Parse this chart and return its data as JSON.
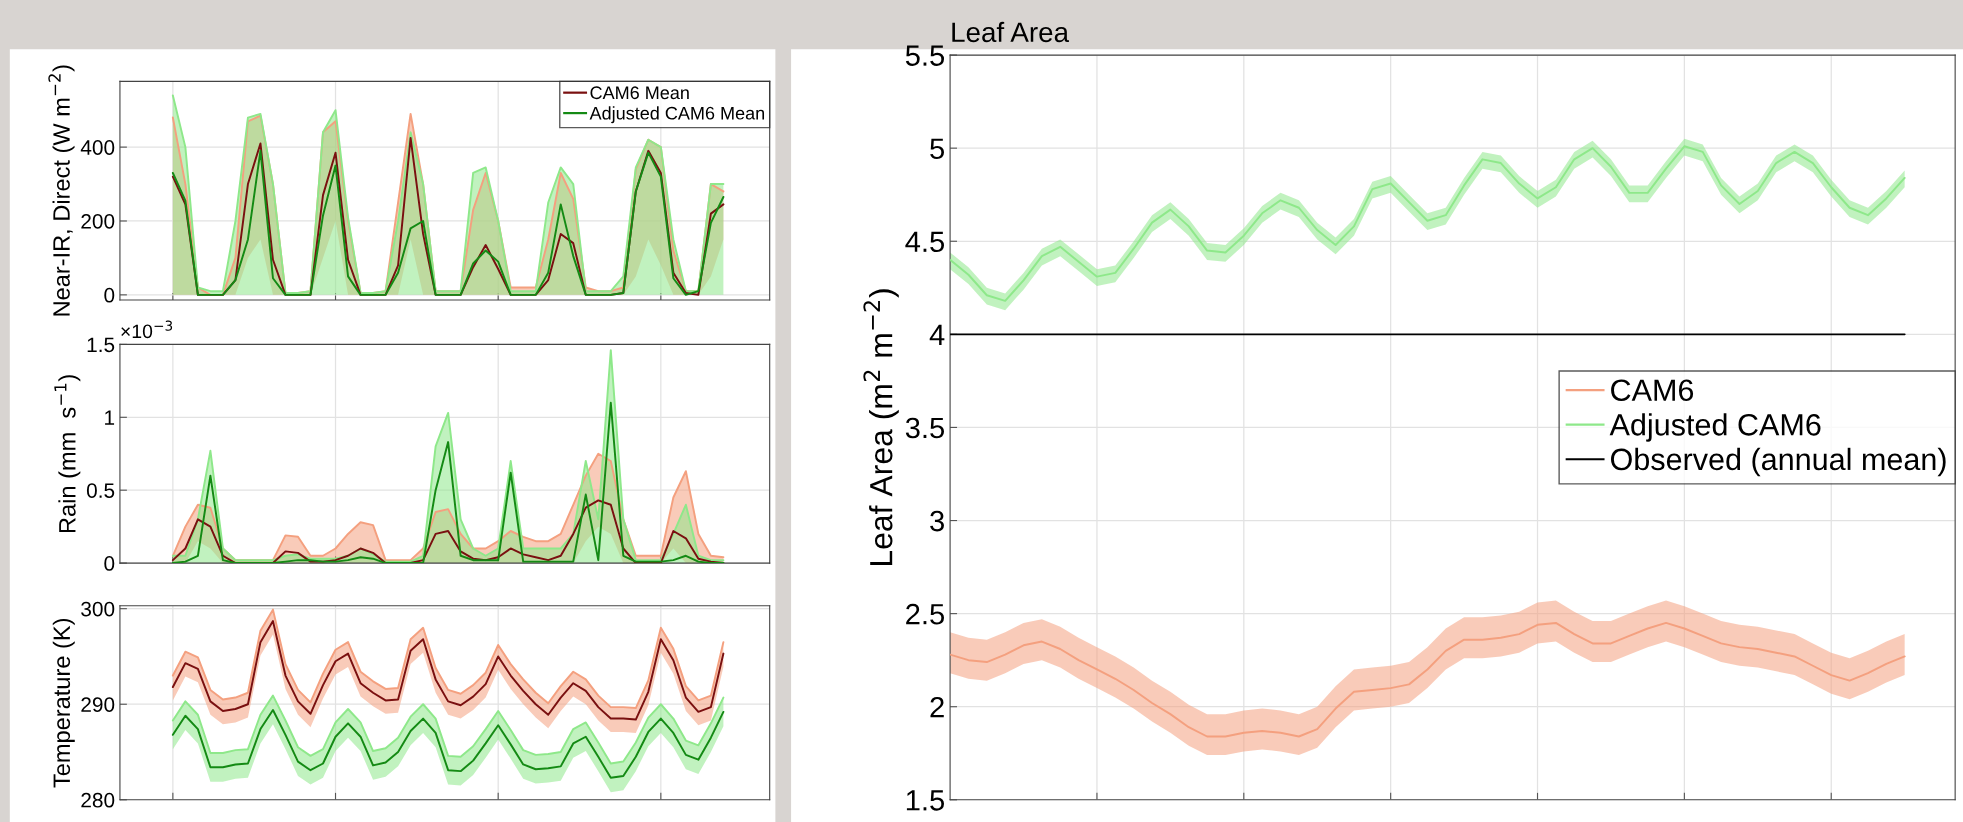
{
  "chart_data": [
    {
      "type": "line",
      "ylabel": "Near-IR, Direct (W m$^{−2}$)",
      "categories": [
        null,
        null,
        null,
        null,
        null,
        null,
        null,
        null,
        null,
        null,
        null,
        null,
        null,
        null,
        null,
        null,
        null,
        null,
        null,
        null,
        null,
        null,
        null,
        null,
        null,
        null,
        null,
        null,
        null,
        null,
        null,
        null,
        null,
        null,
        null,
        null,
        null,
        null,
        null,
        null,
        null,
        null,
        null,
        null,
        null
      ],
      "ylim": [
        -14,
        578
      ],
      "yticks": [
        0,
        200,
        400
      ],
      "tick_labels": "y",
      "grid": true,
      "legend": "top right",
      "marker": "none",
      "line_style": "solid",
      "series": [
        {
          "color": "#f4a07f",
          "values": [
            480,
            300,
            20,
            0,
            0,
            100,
            470,
            485,
            300,
            5,
            5,
            10,
            440,
            470,
            200,
            5,
            5,
            10,
            250,
            490,
            300,
            10,
            10,
            10,
            230,
            330,
            200,
            20,
            20,
            20,
            150,
            330,
            260,
            20,
            10,
            10,
            20,
            340,
            420,
            400,
            120,
            10,
            10,
            300,
            280
          ],
          "lower": [
            0,
            0,
            0,
            0,
            0,
            0,
            100,
            150,
            0,
            0,
            0,
            0,
            100,
            200,
            0,
            0,
            0,
            0,
            0,
            150,
            0,
            0,
            0,
            0,
            0,
            0,
            0,
            0,
            0,
            0,
            0,
            0,
            0,
            0,
            0,
            0,
            0,
            50,
            150,
            80,
            0,
            0,
            0,
            50,
            150
          ],
          "upper": [
            480,
            300,
            20,
            0,
            0,
            100,
            470,
            485,
            300,
            5,
            5,
            10,
            440,
            470,
            200,
            5,
            5,
            10,
            250,
            490,
            300,
            10,
            10,
            10,
            230,
            330,
            200,
            20,
            20,
            20,
            150,
            330,
            260,
            20,
            10,
            10,
            20,
            340,
            420,
            400,
            120,
            10,
            10,
            300,
            280
          ]
        },
        {
          "color": "#8ee88a",
          "values": [
            540,
            400,
            20,
            10,
            10,
            200,
            480,
            490,
            300,
            5,
            5,
            10,
            440,
            500,
            210,
            5,
            5,
            10,
            200,
            440,
            300,
            10,
            10,
            10,
            330,
            345,
            200,
            10,
            10,
            10,
            250,
            345,
            300,
            10,
            10,
            10,
            50,
            345,
            420,
            400,
            150,
            10,
            10,
            300,
            300
          ],
          "lower": [
            0,
            0,
            0,
            0,
            0,
            0,
            0,
            0,
            0,
            0,
            0,
            0,
            0,
            0,
            0,
            0,
            0,
            0,
            0,
            0,
            0,
            0,
            0,
            0,
            0,
            0,
            0,
            0,
            0,
            0,
            0,
            0,
            0,
            0,
            0,
            0,
            0,
            0,
            0,
            0,
            0,
            0,
            0,
            0,
            0
          ],
          "upper": [
            540,
            400,
            20,
            10,
            10,
            200,
            480,
            490,
            300,
            5,
            5,
            10,
            440,
            500,
            210,
            5,
            5,
            10,
            200,
            440,
            300,
            10,
            10,
            10,
            330,
            345,
            200,
            10,
            10,
            10,
            250,
            345,
            300,
            10,
            10,
            10,
            50,
            345,
            420,
            400,
            150,
            10,
            10,
            300,
            300
          ]
        },
        {
          "name": "CAM6 Mean",
          "color": "#7a1010",
          "values": [
            320,
            245,
            0,
            0,
            0,
            40,
            300,
            410,
            95,
            0,
            0,
            0,
            270,
            385,
            95,
            0,
            0,
            0,
            80,
            425,
            165,
            0,
            0,
            0,
            75,
            135,
            70,
            0,
            0,
            0,
            40,
            165,
            140,
            0,
            0,
            0,
            5,
            280,
            390,
            330,
            60,
            5,
            0,
            220,
            245
          ]
        },
        {
          "name": "Adjusted CAM6 Mean",
          "color": "#148a14",
          "values": [
            330,
            255,
            0,
            0,
            0,
            40,
            150,
            390,
            45,
            0,
            0,
            0,
            215,
            350,
            50,
            0,
            0,
            0,
            60,
            180,
            200,
            0,
            0,
            0,
            85,
            120,
            90,
            0,
            0,
            0,
            60,
            245,
            105,
            0,
            0,
            0,
            5,
            280,
            385,
            320,
            45,
            0,
            10,
            195,
            265
          ]
        }
      ]
    },
    {
      "type": "line",
      "ylabel": "Rain (mm  s$^{−1}$)",
      "annotations": [
        "×10$^{−3}$"
      ],
      "categories": [
        null,
        null,
        null,
        null,
        null,
        null,
        null,
        null,
        null,
        null,
        null,
        null,
        null,
        null,
        null,
        null,
        null,
        null,
        null,
        null,
        null,
        null,
        null,
        null,
        null,
        null,
        null,
        null,
        null,
        null,
        null,
        null,
        null,
        null,
        null,
        null,
        null,
        null,
        null,
        null,
        null,
        null,
        null,
        null,
        null
      ],
      "ylim": [
        0,
        1.5
      ],
      "yticks": [
        0,
        0.5,
        1,
        1.5
      ],
      "tick_labels": "y",
      "grid": true,
      "marker": "none",
      "line_style": "solid",
      "series": [
        {
          "color": "#f4a07f",
          "values": [
            0.05,
            0.25,
            0.4,
            0.38,
            0.1,
            0.02,
            0.02,
            0.02,
            0.02,
            0.19,
            0.18,
            0.05,
            0.05,
            0.1,
            0.2,
            0.28,
            0.26,
            0.02,
            0.02,
            0.02,
            0.1,
            0.35,
            0.37,
            0.2,
            0.1,
            0.1,
            0.15,
            0.22,
            0.18,
            0.15,
            0.15,
            0.2,
            0.4,
            0.6,
            0.75,
            0.7,
            0.3,
            0.05,
            0.05,
            0.05,
            0.45,
            0.63,
            0.2,
            0.05,
            0.04
          ],
          "lower": [
            0,
            0,
            0.15,
            0.1,
            0,
            0,
            0,
            0,
            0,
            0,
            0,
            0,
            0,
            0,
            0,
            0,
            0,
            0,
            0,
            0,
            0,
            0,
            0,
            0,
            0,
            0,
            0,
            0,
            0,
            0,
            0,
            0,
            0,
            0.15,
            0.25,
            0.2,
            0,
            0,
            0,
            0,
            0.1,
            0,
            0,
            0,
            0
          ],
          "upper": [
            0.05,
            0.25,
            0.4,
            0.38,
            0.1,
            0.02,
            0.02,
            0.02,
            0.02,
            0.19,
            0.18,
            0.05,
            0.05,
            0.1,
            0.2,
            0.28,
            0.26,
            0.02,
            0.02,
            0.02,
            0.1,
            0.35,
            0.37,
            0.2,
            0.1,
            0.1,
            0.15,
            0.22,
            0.18,
            0.15,
            0.15,
            0.2,
            0.4,
            0.6,
            0.75,
            0.7,
            0.3,
            0.05,
            0.05,
            0.05,
            0.45,
            0.63,
            0.2,
            0.05,
            0.04
          ]
        },
        {
          "color": "#8ee88a",
          "values": [
            0.05,
            0.05,
            0.3,
            0.77,
            0.1,
            0.02,
            0.02,
            0.02,
            0.02,
            0.05,
            0.06,
            0.03,
            0.03,
            0.03,
            0.05,
            0.1,
            0.06,
            0.01,
            0.01,
            0.01,
            0.05,
            0.8,
            1.03,
            0.3,
            0.1,
            0.05,
            0.1,
            0.7,
            0.1,
            0.1,
            0.1,
            0.1,
            0.2,
            0.7,
            0.3,
            1.46,
            0.3,
            0.02,
            0.02,
            0.02,
            0.2,
            0.4,
            0.05,
            0.02,
            0.02
          ],
          "lower": [
            0,
            0,
            0,
            0,
            0,
            0,
            0,
            0,
            0,
            0,
            0,
            0,
            0,
            0,
            0,
            0,
            0,
            0,
            0,
            0,
            0,
            0,
            0,
            0,
            0,
            0,
            0,
            0,
            0,
            0,
            0,
            0,
            0,
            0,
            0,
            0,
            0,
            0,
            0,
            0,
            0,
            0,
            0,
            0,
            0
          ],
          "upper": [
            0.05,
            0.05,
            0.3,
            0.77,
            0.1,
            0.02,
            0.02,
            0.02,
            0.02,
            0.05,
            0.06,
            0.03,
            0.03,
            0.03,
            0.05,
            0.1,
            0.06,
            0.01,
            0.01,
            0.01,
            0.05,
            0.8,
            1.03,
            0.3,
            0.1,
            0.05,
            0.1,
            0.7,
            0.1,
            0.1,
            0.1,
            0.1,
            0.2,
            0.7,
            0.3,
            1.46,
            0.3,
            0.02,
            0.02,
            0.02,
            0.2,
            0.4,
            0.05,
            0.02,
            0.02
          ]
        },
        {
          "color": "#7a1010",
          "values": [
            0.02,
            0.1,
            0.3,
            0.25,
            0.05,
            0,
            0,
            0,
            0,
            0.08,
            0.07,
            0.01,
            0.01,
            0.02,
            0.05,
            0.1,
            0.07,
            0,
            0,
            0,
            0.02,
            0.2,
            0.22,
            0.08,
            0.03,
            0.02,
            0.04,
            0.1,
            0.06,
            0.04,
            0.02,
            0.05,
            0.2,
            0.38,
            0.43,
            0.4,
            0.1,
            0,
            0,
            0,
            0.22,
            0.17,
            0.03,
            0.01,
            0
          ]
        },
        {
          "color": "#148a14",
          "values": [
            0,
            0.01,
            0.05,
            0.6,
            0.02,
            0,
            0,
            0,
            0,
            0.01,
            0.02,
            0.02,
            0.01,
            0.01,
            0.02,
            0.04,
            0.03,
            0,
            0,
            0,
            0,
            0.5,
            0.83,
            0.05,
            0.02,
            0.02,
            0.02,
            0.62,
            0.01,
            0.01,
            0.01,
            0.01,
            0.01,
            0.47,
            0.02,
            1.1,
            0.05,
            0.01,
            0.01,
            0.01,
            0.02,
            0.05,
            0.01,
            0,
            0
          ]
        }
      ]
    },
    {
      "type": "line",
      "ylabel": "Temperature (K)",
      "categories": [
        null,
        null,
        null,
        null,
        null,
        null,
        null,
        null,
        null,
        null,
        null,
        null,
        null,
        null,
        null,
        null,
        null,
        null,
        null,
        null,
        null,
        null,
        null,
        null,
        null,
        null,
        null,
        null,
        null,
        null,
        null,
        null,
        null,
        null,
        null,
        null,
        null,
        null,
        null,
        null,
        null,
        null,
        null,
        null,
        null
      ],
      "ylim": [
        280,
        300.3
      ],
      "yticks": [
        280,
        290,
        300
      ],
      "tick_labels": "y",
      "grid": true,
      "marker": "none",
      "line_style": "solid",
      "series": [
        {
          "color": "#f4a07f",
          "values": [
            293,
            295.5,
            294.9,
            291.5,
            290.5,
            290.7,
            291.2,
            297.7,
            299.9,
            294.2,
            291.5,
            290.2,
            293.2,
            295.7,
            296.5,
            293.4,
            292.4,
            291.6,
            291.7,
            296.8,
            298,
            293.8,
            291.5,
            291.1,
            292,
            293.3,
            296.2,
            294.2,
            292.6,
            291.2,
            290.1,
            291.9,
            293.4,
            292.6,
            290.9,
            289.7,
            289.7,
            289.6,
            292.5,
            298,
            295.8,
            291.9,
            290.4,
            290.9,
            296.5
          ],
          "upper": [
            293,
            295.5,
            294.9,
            291.5,
            290.5,
            290.7,
            291.2,
            297.7,
            299.9,
            294.2,
            291.5,
            290.2,
            293.2,
            295.7,
            296.5,
            293.4,
            292.4,
            291.6,
            291.7,
            296.8,
            298,
            293.8,
            291.5,
            291.1,
            292,
            293.3,
            296.2,
            294.2,
            292.6,
            291.2,
            290.1,
            291.9,
            293.4,
            292.6,
            290.9,
            289.7,
            289.7,
            289.6,
            292.5,
            298,
            295.8,
            291.9,
            290.4,
            290.9,
            296.5
          ],
          "lower": [
            290.4,
            292.9,
            292.3,
            288.9,
            287.9,
            288.1,
            288.6,
            295.1,
            297.3,
            291.6,
            288.9,
            287.6,
            290.6,
            293.1,
            293.9,
            290.8,
            289.8,
            289,
            289.1,
            294.2,
            295.4,
            291.2,
            288.9,
            288.5,
            289.4,
            290.7,
            293.6,
            291.6,
            290,
            288.6,
            287.5,
            289.3,
            290.8,
            290,
            288.3,
            287.1,
            287.1,
            287,
            289.9,
            295.4,
            293.2,
            289.3,
            287.8,
            288.3,
            293.9
          ]
        },
        {
          "color": "#8ee88a",
          "values": [
            288.3,
            290.3,
            288.9,
            284.9,
            284.9,
            285.2,
            285.3,
            288.9,
            290.9,
            288.3,
            285.5,
            284.6,
            285.3,
            288.1,
            289.5,
            288.1,
            285.1,
            285.4,
            286.5,
            288.7,
            290,
            288.5,
            284.6,
            284.5,
            285.6,
            287.4,
            289.3,
            287.3,
            285.2,
            284.7,
            284.8,
            285,
            287.4,
            288.1,
            286,
            283.8,
            284,
            286,
            288.6,
            290,
            288.5,
            286.2,
            285.7,
            288,
            290.7
          ],
          "upper": [
            288.3,
            290.3,
            288.9,
            284.9,
            284.9,
            285.2,
            285.3,
            288.9,
            290.9,
            288.3,
            285.5,
            284.6,
            285.3,
            288.1,
            289.5,
            288.1,
            285.1,
            285.4,
            286.5,
            288.7,
            290,
            288.5,
            284.6,
            284.5,
            285.6,
            287.4,
            289.3,
            287.3,
            285.2,
            284.7,
            284.8,
            285,
            287.4,
            288.1,
            286,
            283.8,
            284,
            286,
            288.6,
            290,
            288.5,
            286.2,
            285.7,
            288,
            290.7
          ],
          "lower": [
            285.3,
            287.3,
            285.9,
            281.9,
            281.9,
            282.2,
            282.3,
            285.9,
            287.9,
            285.3,
            282.5,
            281.6,
            282.3,
            285.1,
            286.5,
            285.1,
            282.1,
            282.4,
            283.5,
            285.7,
            287,
            285.5,
            281.6,
            281.5,
            282.6,
            284.4,
            286.3,
            284.3,
            282.2,
            281.7,
            281.8,
            282,
            284.4,
            285.1,
            283,
            280.8,
            281,
            283,
            285.6,
            287,
            285.5,
            283.2,
            282.7,
            285,
            287.7
          ]
        },
        {
          "color": "#7a1010",
          "values": [
            291.8,
            294.3,
            293.7,
            290.3,
            289.3,
            289.5,
            290,
            296.5,
            298.7,
            293,
            290.3,
            289,
            292,
            294.5,
            295.3,
            292.2,
            291.2,
            290.4,
            290.5,
            295.6,
            296.8,
            292.6,
            290.3,
            289.9,
            290.8,
            292.1,
            295,
            293,
            291.4,
            290,
            288.9,
            290.7,
            292.2,
            291.4,
            289.7,
            288.5,
            288.5,
            288.4,
            291.3,
            296.8,
            294.6,
            290.7,
            289.2,
            289.7,
            295.3
          ]
        },
        {
          "color": "#148a14",
          "values": [
            286.8,
            288.8,
            287.4,
            283.4,
            283.4,
            283.7,
            283.8,
            287.4,
            289.4,
            286.8,
            284,
            283.1,
            283.8,
            286.6,
            288,
            286.6,
            283.6,
            283.9,
            285,
            287.2,
            288.5,
            287,
            283.1,
            283,
            284.1,
            285.9,
            287.8,
            285.8,
            283.7,
            283.2,
            283.3,
            283.5,
            285.9,
            286.6,
            284.5,
            282.3,
            282.5,
            284.5,
            287.1,
            288.5,
            287,
            284.7,
            284.2,
            286.5,
            289.2
          ]
        }
      ]
    },
    {
      "type": "line",
      "ylabel": "Leaf Area (m$^{2}$ m$^{−2}$)",
      "annotations": [
        "Leaf Area"
      ],
      "categories": [
        null,
        null,
        null,
        null,
        null,
        null,
        null,
        null,
        null,
        null,
        null,
        null,
        null,
        null,
        null,
        null,
        null,
        null,
        null,
        null,
        null,
        null,
        null,
        null,
        null,
        null,
        null,
        null,
        null,
        null,
        null,
        null,
        null,
        null,
        null,
        null,
        null,
        null,
        null,
        null,
        null,
        null,
        null,
        null,
        null,
        null,
        null,
        null,
        null,
        null,
        null,
        null,
        null
      ],
      "ylim": [
        1.5,
        5.5
      ],
      "yticks": [
        1.5,
        2,
        2.5,
        3,
        3.5,
        4,
        4.5,
        5,
        5.5
      ],
      "tick_labels": "y",
      "grid": true,
      "legend": "right",
      "marker": "none",
      "line_style": "solid",
      "series": [
        {
          "name": "CAM6",
          "color": "#f4a07f",
          "values": [
            2.28,
            2.25,
            2.24,
            2.28,
            2.33,
            2.35,
            2.31,
            2.25,
            2.2,
            2.15,
            2.09,
            2.02,
            1.96,
            1.89,
            1.84,
            1.84,
            1.86,
            1.87,
            1.86,
            1.84,
            1.88,
            1.99,
            2.08,
            2.09,
            2.1,
            2.12,
            2.2,
            2.3,
            2.36,
            2.36,
            2.37,
            2.39,
            2.44,
            2.45,
            2.39,
            2.34,
            2.34,
            2.38,
            2.42,
            2.45,
            2.42,
            2.38,
            2.34,
            2.32,
            2.31,
            2.29,
            2.27,
            2.22,
            2.17,
            2.14,
            2.18,
            2.23,
            2.27
          ],
          "upper": [
            2.4,
            2.37,
            2.36,
            2.4,
            2.45,
            2.47,
            2.43,
            2.37,
            2.32,
            2.27,
            2.21,
            2.14,
            2.08,
            2.01,
            1.96,
            1.96,
            1.98,
            1.99,
            1.98,
            1.96,
            2.0,
            2.11,
            2.2,
            2.21,
            2.22,
            2.24,
            2.32,
            2.42,
            2.48,
            2.48,
            2.49,
            2.51,
            2.56,
            2.57,
            2.51,
            2.46,
            2.46,
            2.5,
            2.54,
            2.57,
            2.54,
            2.5,
            2.46,
            2.44,
            2.43,
            2.41,
            2.39,
            2.34,
            2.29,
            2.26,
            2.3,
            2.35,
            2.39
          ],
          "lower": [
            2.18,
            2.15,
            2.14,
            2.18,
            2.23,
            2.25,
            2.21,
            2.15,
            2.1,
            2.05,
            1.99,
            1.92,
            1.86,
            1.79,
            1.74,
            1.74,
            1.76,
            1.77,
            1.76,
            1.74,
            1.78,
            1.89,
            1.98,
            1.99,
            2.0,
            2.02,
            2.1,
            2.2,
            2.26,
            2.26,
            2.27,
            2.29,
            2.34,
            2.35,
            2.29,
            2.24,
            2.24,
            2.28,
            2.32,
            2.35,
            2.32,
            2.28,
            2.24,
            2.22,
            2.21,
            2.19,
            2.17,
            2.12,
            2.07,
            2.04,
            2.08,
            2.13,
            2.17
          ]
        },
        {
          "name": "Adjusted CAM6",
          "color": "#8ee88a",
          "values": [
            4.4,
            4.32,
            4.21,
            4.18,
            4.29,
            4.42,
            4.47,
            4.39,
            4.31,
            4.33,
            4.46,
            4.6,
            4.67,
            4.58,
            4.45,
            4.44,
            4.53,
            4.65,
            4.72,
            4.68,
            4.56,
            4.48,
            4.58,
            4.78,
            4.81,
            4.71,
            4.61,
            4.64,
            4.8,
            4.94,
            4.92,
            4.81,
            4.73,
            4.79,
            4.94,
            5.0,
            4.9,
            4.76,
            4.76,
            4.89,
            5.01,
            4.98,
            4.8,
            4.7,
            4.77,
            4.92,
            4.98,
            4.92,
            4.79,
            4.68,
            4.64,
            4.73,
            4.84
          ],
          "upper": [
            4.44,
            4.36,
            4.25,
            4.22,
            4.33,
            4.46,
            4.51,
            4.43,
            4.35,
            4.37,
            4.5,
            4.64,
            4.71,
            4.62,
            4.49,
            4.48,
            4.57,
            4.69,
            4.76,
            4.72,
            4.6,
            4.52,
            4.62,
            4.82,
            4.85,
            4.75,
            4.65,
            4.68,
            4.84,
            4.98,
            4.96,
            4.85,
            4.77,
            4.83,
            4.98,
            5.04,
            4.94,
            4.8,
            4.8,
            4.93,
            5.05,
            5.02,
            4.84,
            4.74,
            4.81,
            4.96,
            5.02,
            4.96,
            4.83,
            4.72,
            4.68,
            4.77,
            4.88
          ],
          "lower": [
            4.35,
            4.27,
            4.16,
            4.13,
            4.24,
            4.37,
            4.42,
            4.34,
            4.26,
            4.28,
            4.41,
            4.55,
            4.62,
            4.53,
            4.4,
            4.39,
            4.48,
            4.6,
            4.67,
            4.63,
            4.51,
            4.43,
            4.53,
            4.73,
            4.76,
            4.66,
            4.56,
            4.59,
            4.75,
            4.89,
            4.87,
            4.76,
            4.68,
            4.74,
            4.89,
            4.95,
            4.85,
            4.71,
            4.71,
            4.84,
            4.96,
            4.93,
            4.75,
            4.65,
            4.72,
            4.87,
            4.93,
            4.87,
            4.74,
            4.63,
            4.59,
            4.68,
            4.79
          ]
        },
        {
          "name": "Observed (annual mean)",
          "color": "#000000",
          "values": [
            4,
            4,
            4,
            4,
            4,
            4,
            4,
            4,
            4,
            4,
            4,
            4,
            4,
            4,
            4,
            4,
            4,
            4,
            4,
            4,
            4,
            4,
            4,
            4,
            4,
            4,
            4,
            4,
            4,
            4,
            4,
            4,
            4,
            4,
            4,
            4,
            4,
            4,
            4,
            4,
            4,
            4,
            4,
            4,
            4,
            4,
            4,
            4,
            4,
            4,
            4,
            4,
            4
          ]
        }
      ]
    }
  ]
}
